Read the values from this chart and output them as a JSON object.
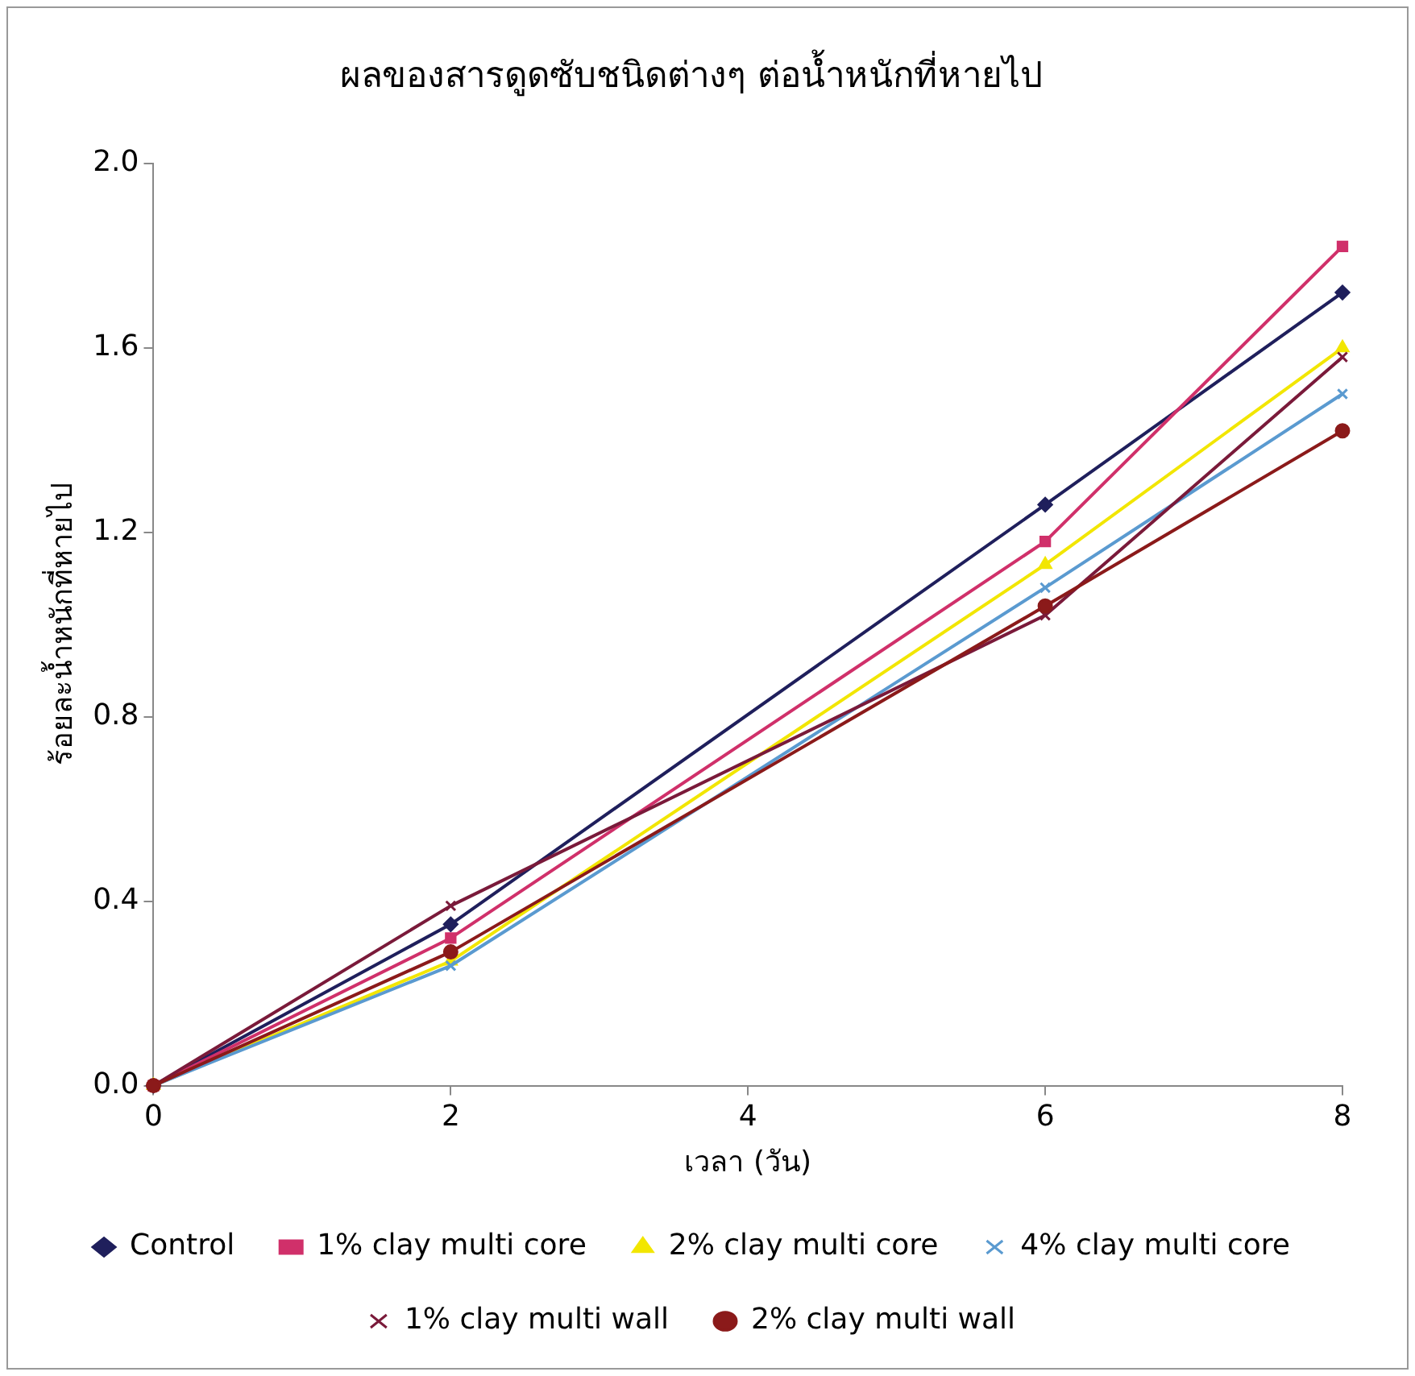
{
  "chart_data": {
    "type": "line",
    "title": "ผลของสารดูดซับชนิดต่างๆ ต่อน้ำหนักที่หายไป",
    "xlabel": "เวลา (วัน)",
    "ylabel": "ร้อยละน้ำหนักที่หายไป",
    "x": [
      0,
      2,
      6,
      8
    ],
    "xlim": [
      0,
      8
    ],
    "xticks": [
      0,
      2,
      4,
      6,
      8
    ],
    "ylim": [
      0,
      2
    ],
    "yticks": [
      {
        "value": 0,
        "label": "0.0"
      },
      {
        "value": 0.4,
        "label": "0.4"
      },
      {
        "value": 0.8,
        "label": "0.8"
      },
      {
        "value": 1.2,
        "label": "1.2"
      },
      {
        "value": 1.6,
        "label": "1.6"
      },
      {
        "value": 2,
        "label": "2.0"
      }
    ],
    "legend": "bottom",
    "grid": false,
    "line_style": "solid",
    "series": [
      {
        "name": "Control",
        "color": "#1f1f5c",
        "marker": "diamond",
        "values": [
          0,
          0.35,
          1.26,
          1.72
        ]
      },
      {
        "name": "1% clay multi core",
        "color": "#d0306a",
        "marker": "square",
        "values": [
          0,
          0.32,
          1.18,
          1.82
        ]
      },
      {
        "name": "2% clay multi core",
        "color": "#f2e600",
        "marker": "triangle",
        "values": [
          0,
          0.27,
          1.13,
          1.6
        ]
      },
      {
        "name": "4% clay multi core",
        "color": "#5a9ad0",
        "marker": "cross",
        "values": [
          0,
          0.26,
          1.08,
          1.5
        ]
      },
      {
        "name": "1% clay multi wall",
        "color": "#7a1a3a",
        "marker": "cross",
        "values": [
          0,
          0.39,
          1.02,
          1.58
        ]
      },
      {
        "name": "2% clay multi wall",
        "color": "#8b1a1a",
        "marker": "circle",
        "values": [
          0,
          0.29,
          1.04,
          1.42
        ]
      }
    ]
  }
}
